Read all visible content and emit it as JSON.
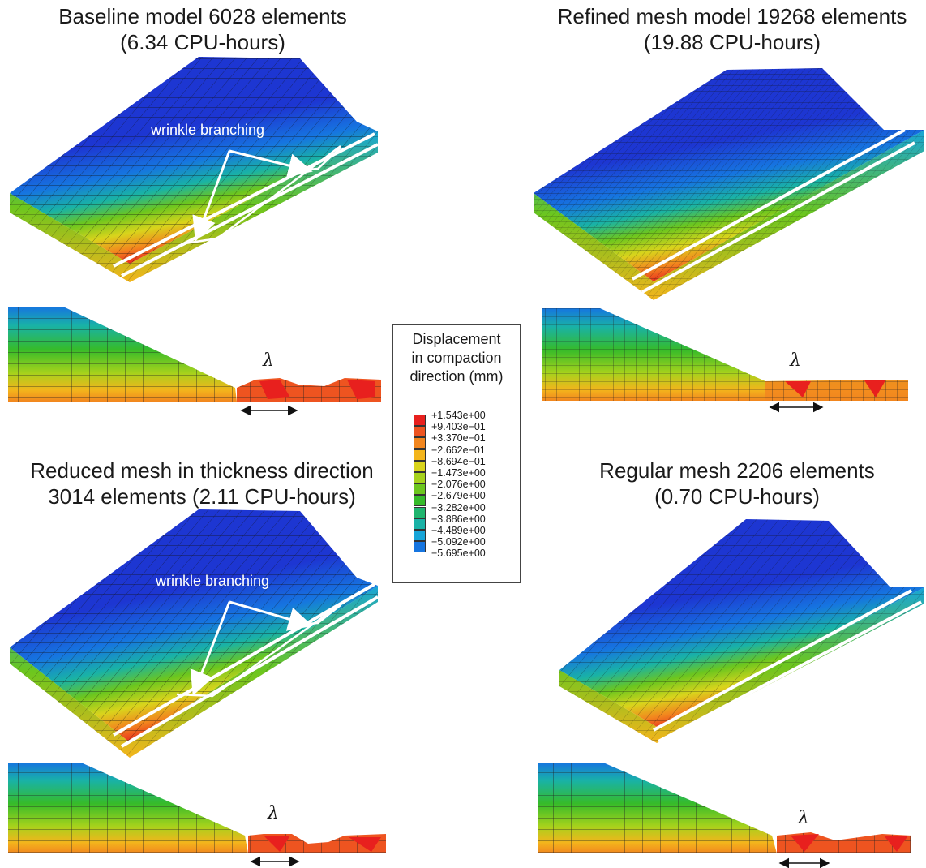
{
  "panels": [
    {
      "title_line1": "Baseline model 6028 elements",
      "title_line2": "(6.34 CPU-hours)",
      "annotation": "wrinkle branching",
      "lambda": "λ"
    },
    {
      "title_line1": "Refined mesh model 19268 elements",
      "title_line2": "(19.88 CPU-hours)",
      "annotation": "",
      "lambda": "λ"
    },
    {
      "title_line1": "Reduced mesh in thickness direction",
      "title_line2": "3014 elements (2.11 CPU-hours)",
      "annotation": "wrinkle branching",
      "lambda": "λ"
    },
    {
      "title_line1": "Regular mesh 2206 elements",
      "title_line2": "(0.70 CPU-hours)",
      "annotation": "",
      "lambda": "λ"
    }
  ],
  "legend": {
    "title_line1": "Displacement",
    "title_line2": "in compaction",
    "title_line3": "direction (mm)",
    "ticks": [
      "+1.543e+00",
      "+9.403e−01",
      "+3.370e−01",
      "−2.662e−01",
      "−8.694e−01",
      "−1.473e+00",
      "−2.076e+00",
      "−2.679e+00",
      "−3.282e+00",
      "−3.886e+00",
      "−4.489e+00",
      "−5.092e+00",
      "−5.695e+00"
    ],
    "colors": [
      "#e8201e",
      "#ee5420",
      "#f2861e",
      "#f3b51c",
      "#d9d41c",
      "#a6d21c",
      "#6cc61e",
      "#36bb2a",
      "#1fb56e",
      "#19b2a6",
      "#17a5d8",
      "#1675e0",
      "#1d36d2"
    ]
  },
  "colors": {
    "deep_blue": "#1d36d2",
    "mesh_line": "#1a1a1a",
    "highlight_line": "#ffffff"
  }
}
